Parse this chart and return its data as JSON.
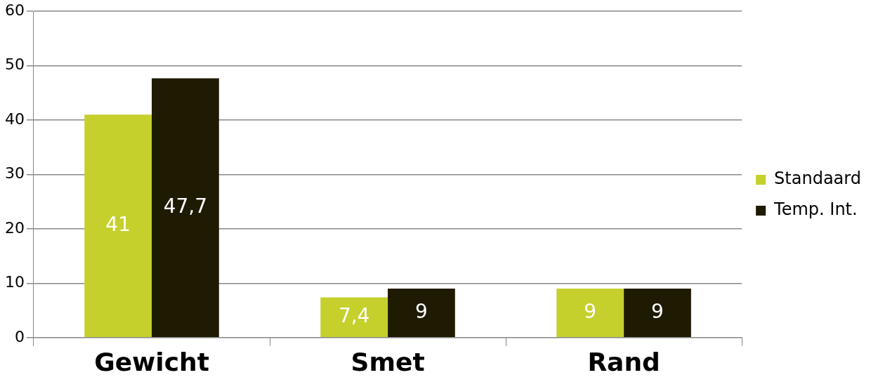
{
  "chart_data": {
    "type": "bar",
    "categories": [
      "Gewicht",
      "Smet",
      "Rand"
    ],
    "series": [
      {
        "name": "Standaard",
        "color": "#c5d02c",
        "values": [
          41,
          7.4,
          9
        ],
        "value_labels": [
          "41",
          "7,4",
          "9"
        ]
      },
      {
        "name": "Temp. Int.",
        "color": "#1f1a02",
        "values": [
          47.7,
          9,
          9
        ],
        "value_labels": [
          "47,7",
          "9",
          "9"
        ]
      }
    ],
    "ylim": [
      0,
      60
    ],
    "yticks": [
      0,
      10,
      20,
      30,
      40,
      50,
      60
    ],
    "grid": "y",
    "legend": "right"
  }
}
